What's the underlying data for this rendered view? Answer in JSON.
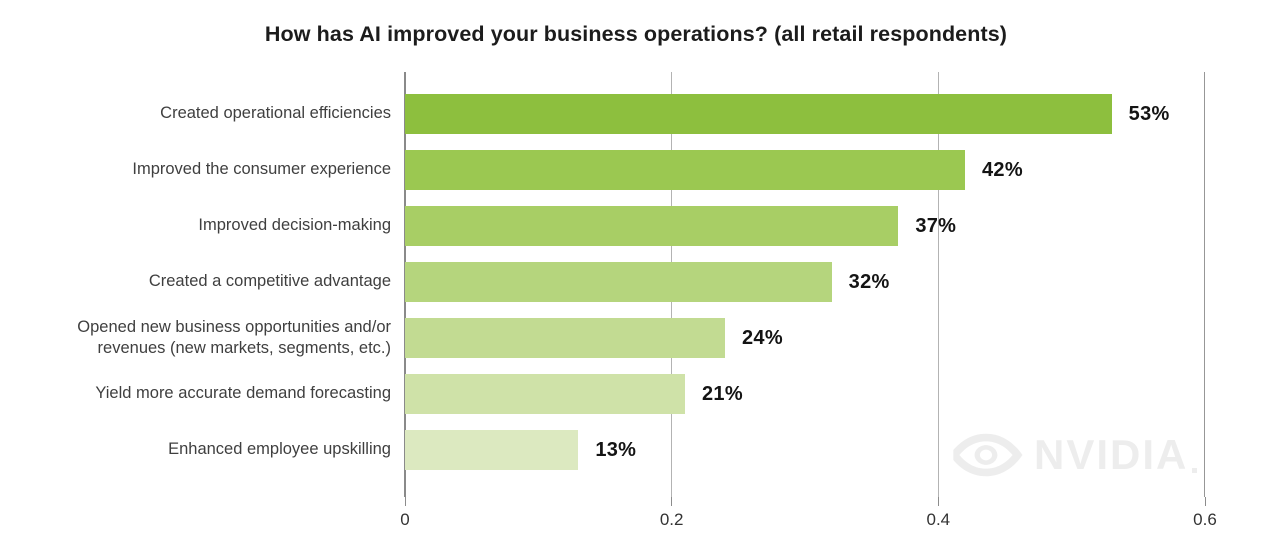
{
  "chart_data": {
    "type": "bar",
    "orientation": "horizontal",
    "title": "How has AI improved your business operations? (all retail respondents)",
    "categories": [
      "Created operational efficiencies",
      "Improved the consumer experience",
      "Improved decision-making",
      "Created a competitive advantage",
      "Opened new business opportunities and/or revenues (new markets, segments, etc.)",
      "Yield more accurate demand forecasting",
      "Enhanced employee upskilling"
    ],
    "values": [
      0.53,
      0.42,
      0.37,
      0.32,
      0.24,
      0.21,
      0.13
    ],
    "value_labels": [
      "53%",
      "42%",
      "37%",
      "32%",
      "24%",
      "21%",
      "13%"
    ],
    "bar_colors": [
      "#8dbf3e",
      "#9bc851",
      "#a8ce65",
      "#b5d57d",
      "#c2db92",
      "#cfe2a8",
      "#dce9c0"
    ],
    "xlabel": "",
    "ylabel": "",
    "xlim": [
      0,
      0.6
    ],
    "x_ticks": [
      0,
      0.2,
      0.4,
      0.6
    ],
    "x_tick_labels": [
      "0",
      "0.2",
      "0.4",
      "0.6"
    ],
    "grid": "vertical-gridlines-behind-bars",
    "legend": "none"
  },
  "watermark": {
    "brand": "NVIDIA",
    "icon": "nvidia-eye-icon",
    "color": "#ededed"
  },
  "colors": {
    "background": "#ffffff",
    "title": "#1c1c1c",
    "category_label": "#3f3f3f",
    "value_label": "#141414",
    "axis_line": "#8a8a8a",
    "gridline": "#b3b3b3",
    "tick_label": "#333333"
  }
}
